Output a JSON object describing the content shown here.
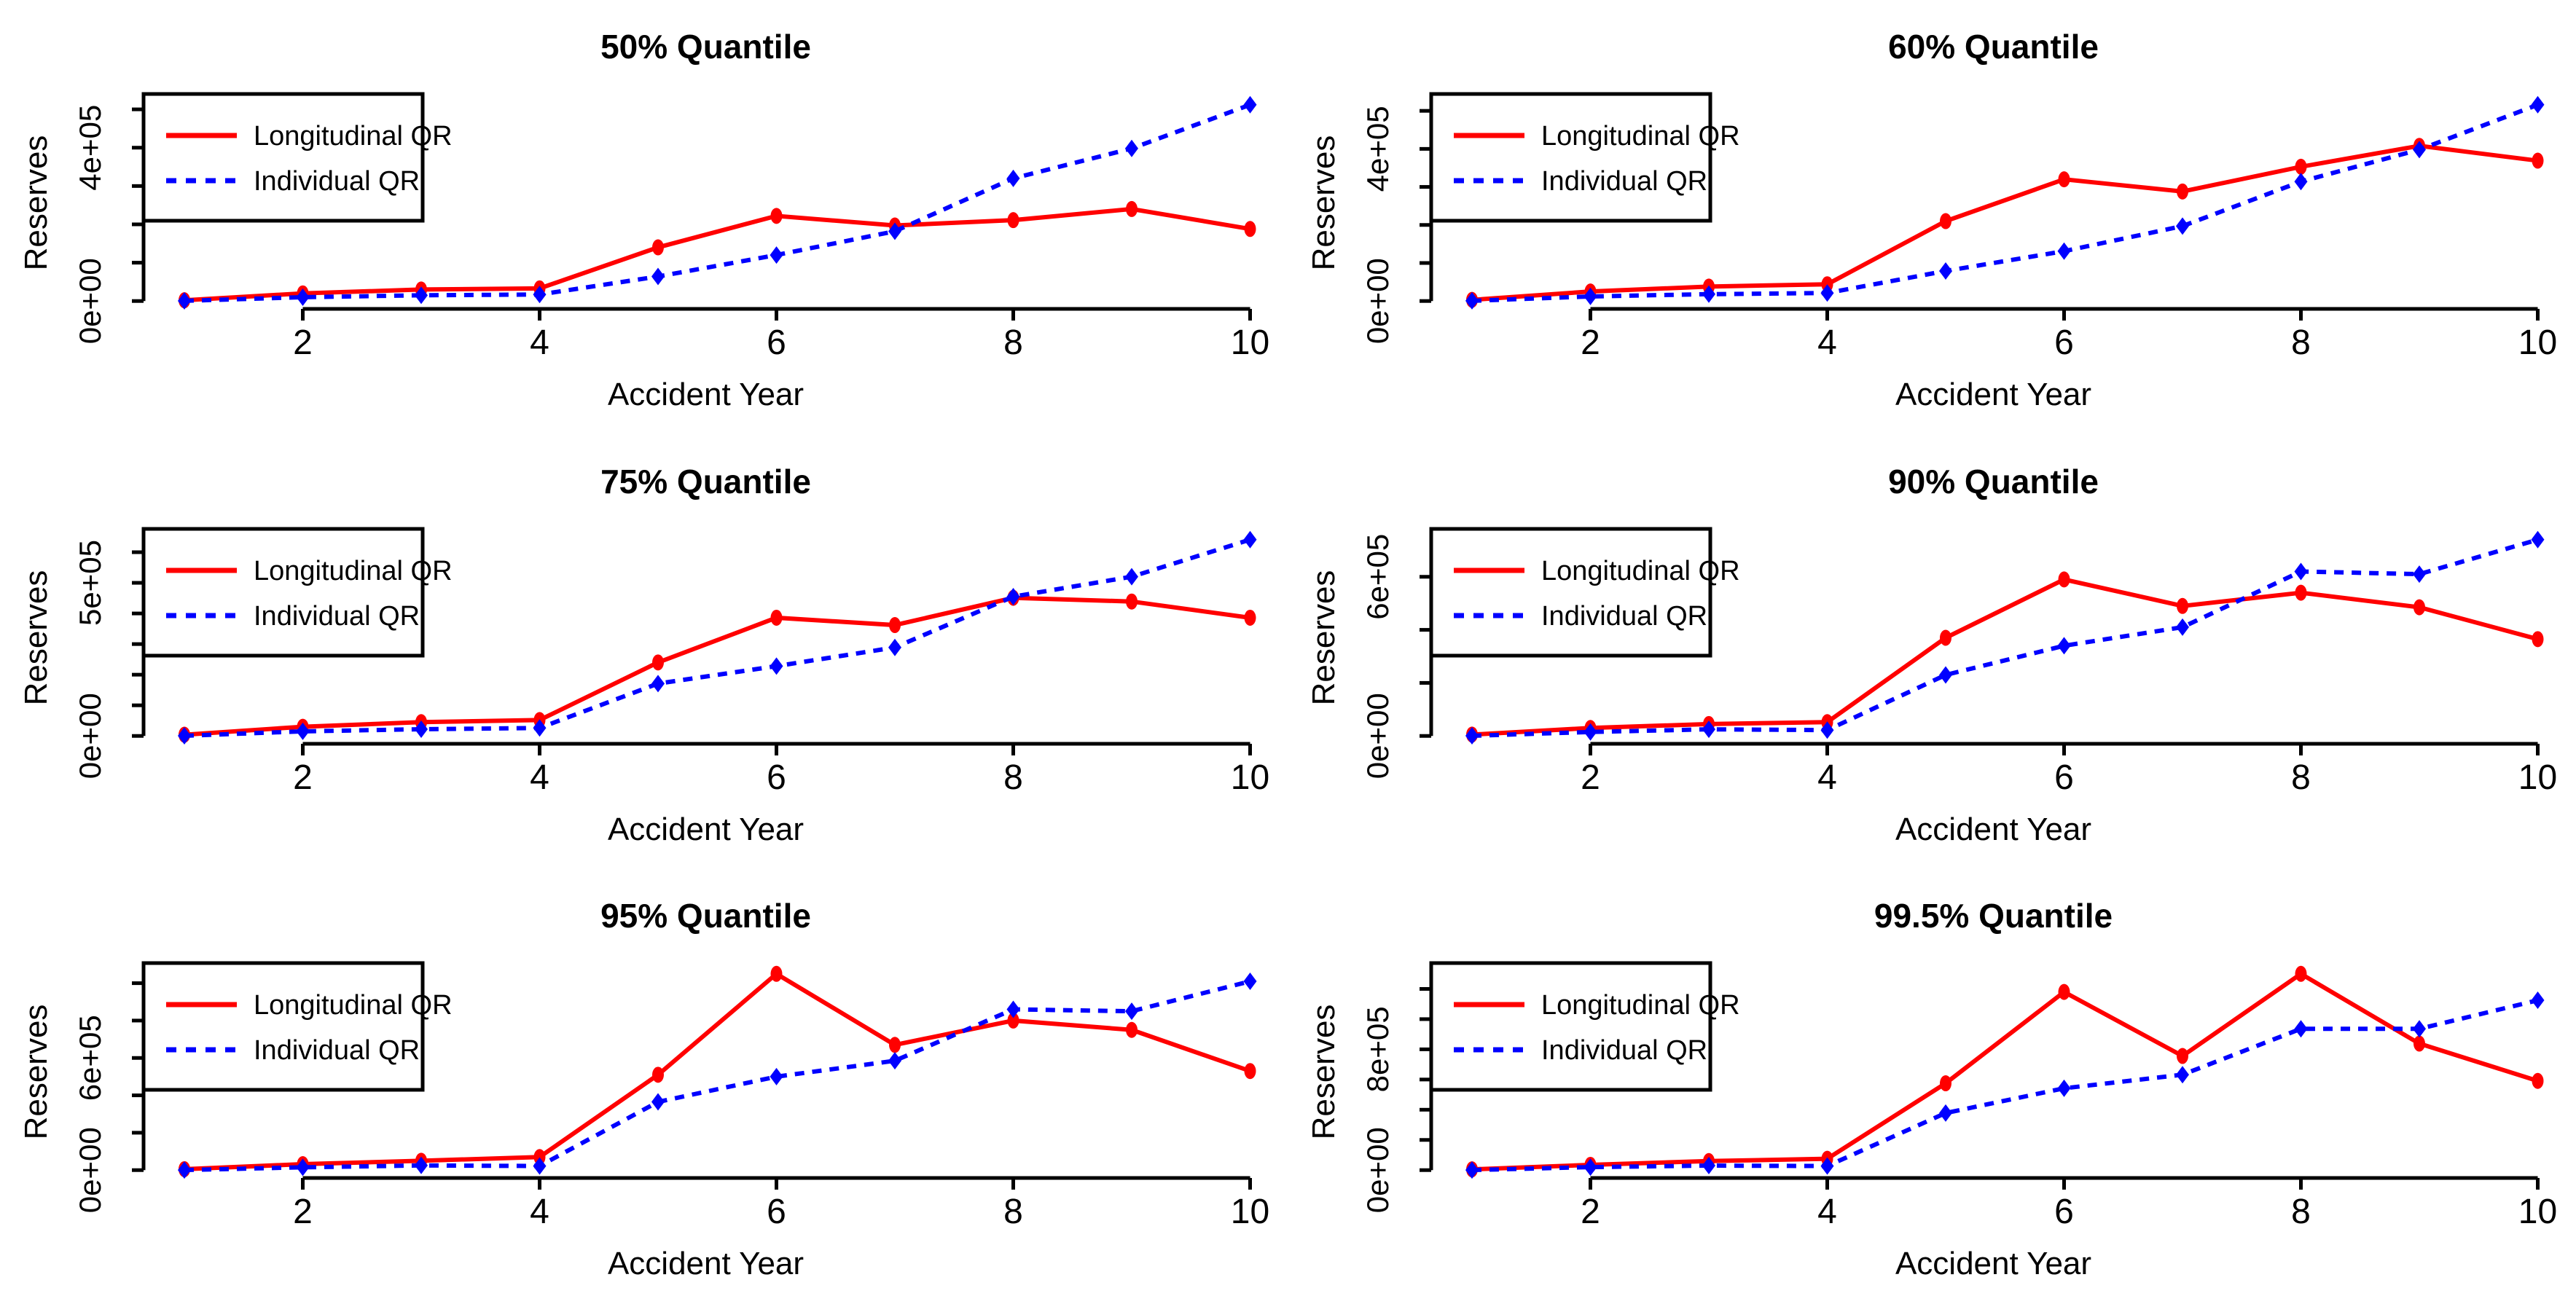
{
  "figure": {
    "xlabel": "Accident Year",
    "ylabel": "Reserves",
    "x_tick_labels": [
      "2",
      "4",
      "6",
      "8",
      "10"
    ],
    "x_ticks": [
      2,
      4,
      6,
      8,
      10
    ],
    "background": "#ffffff",
    "axis_color": "#000000"
  },
  "legend": {
    "items": [
      {
        "label": "Longitudinal QR",
        "color": "#ff0000",
        "style": "solid"
      },
      {
        "label": "Individual QR",
        "color": "#0000ff",
        "style": "dashed"
      }
    ]
  },
  "chart_data": [
    {
      "type": "line",
      "title": "50% Quantile",
      "xlabel": "Accident Year",
      "ylabel": "Reserves",
      "x": [
        1,
        2,
        3,
        4,
        5,
        6,
        7,
        8,
        9,
        10
      ],
      "xlim": [
        1,
        10
      ],
      "ylim": [
        -20500,
        532500
      ],
      "grid": false,
      "legend_position": "topleft",
      "y_ticks": [
        {
          "v": 0,
          "label": "0e+00"
        },
        {
          "v": 100000,
          "label": ""
        },
        {
          "v": 200000,
          "label": ""
        },
        {
          "v": 300000,
          "label": ""
        },
        {
          "v": 400000,
          "label": "4e+05"
        },
        {
          "v": 500000,
          "label": ""
        }
      ],
      "series": [
        {
          "name": "Longitudinal QR",
          "color": "#ff0000",
          "style": "solid",
          "marker": "circle",
          "values": [
            2000,
            20000,
            30000,
            33000,
            140000,
            222000,
            197000,
            211000,
            240000,
            188000
          ]
        },
        {
          "name": "Individual QR",
          "color": "#0000ff",
          "style": "dashed",
          "marker": "diamond",
          "values": [
            500,
            10000,
            15000,
            17000,
            64000,
            120000,
            182000,
            320000,
            398000,
            512000
          ]
        }
      ]
    },
    {
      "type": "line",
      "title": "60% Quantile",
      "xlabel": "Accident Year",
      "ylabel": "Reserves",
      "x": [
        1,
        2,
        3,
        4,
        5,
        6,
        7,
        8,
        9,
        10
      ],
      "xlim": [
        1,
        10
      ],
      "ylim": [
        -20700,
        536700
      ],
      "grid": false,
      "legend_position": "topleft",
      "y_ticks": [
        {
          "v": 0,
          "label": "0e+00"
        },
        {
          "v": 100000,
          "label": ""
        },
        {
          "v": 200000,
          "label": ""
        },
        {
          "v": 300000,
          "label": ""
        },
        {
          "v": 400000,
          "label": "4e+05"
        },
        {
          "v": 500000,
          "label": ""
        }
      ],
      "series": [
        {
          "name": "Longitudinal QR",
          "color": "#ff0000",
          "style": "solid",
          "marker": "circle",
          "values": [
            3000,
            25000,
            38000,
            44000,
            210000,
            320000,
            288000,
            353000,
            408000,
            369000
          ]
        },
        {
          "name": "Individual QR",
          "color": "#0000ff",
          "style": "dashed",
          "marker": "diamond",
          "values": [
            500,
            12000,
            18000,
            21000,
            79000,
            131000,
            197000,
            314000,
            398000,
            516000
          ]
        }
      ]
    },
    {
      "type": "line",
      "title": "75% Quantile",
      "xlabel": "Accident Year",
      "ylabel": "Reserves",
      "x": [
        1,
        2,
        3,
        4,
        5,
        6,
        7,
        8,
        9,
        10
      ],
      "xlim": [
        1,
        10
      ],
      "ylim": [
        -25650,
        666650
      ],
      "grid": false,
      "legend_position": "topleft",
      "y_ticks": [
        {
          "v": 0,
          "label": "0e+00"
        },
        {
          "v": 100000,
          "label": ""
        },
        {
          "v": 200000,
          "label": ""
        },
        {
          "v": 300000,
          "label": ""
        },
        {
          "v": 400000,
          "label": ""
        },
        {
          "v": 500000,
          "label": "5e+05"
        },
        {
          "v": 600000,
          "label": ""
        }
      ],
      "series": [
        {
          "name": "Longitudinal QR",
          "color": "#ff0000",
          "style": "solid",
          "marker": "circle",
          "values": [
            4000,
            30000,
            45000,
            52000,
            240000,
            386000,
            362000,
            451000,
            439000,
            386000
          ]
        },
        {
          "name": "Individual QR",
          "color": "#0000ff",
          "style": "dashed",
          "marker": "diamond",
          "values": [
            500,
            15000,
            22000,
            26000,
            171000,
            228000,
            289000,
            455000,
            520000,
            641000
          ]
        }
      ]
    },
    {
      "type": "line",
      "title": "90% Quantile",
      "xlabel": "Accident Year",
      "ylabel": "Reserves",
      "x": [
        1,
        2,
        3,
        4,
        5,
        6,
        7,
        8,
        9,
        10
      ],
      "xlim": [
        1,
        10
      ],
      "ylim": [
        -29600,
        769600
      ],
      "grid": false,
      "legend_position": "topleft",
      "y_ticks": [
        {
          "v": 0,
          "label": "0e+00"
        },
        {
          "v": 200000,
          "label": ""
        },
        {
          "v": 400000,
          "label": ""
        },
        {
          "v": 600000,
          "label": "6e+05"
        }
      ],
      "series": [
        {
          "name": "Longitudinal QR",
          "color": "#ff0000",
          "style": "solid",
          "marker": "circle",
          "values": [
            5000,
            30000,
            45000,
            52000,
            370000,
            590000,
            490000,
            540000,
            485000,
            365000
          ]
        },
        {
          "name": "Individual QR",
          "color": "#0000ff",
          "style": "dashed",
          "marker": "diamond",
          "values": [
            500,
            15000,
            25000,
            22000,
            230000,
            340000,
            410000,
            620000,
            610000,
            740000
          ]
        }
      ]
    },
    {
      "type": "line",
      "title": "95% Quantile",
      "xlabel": "Accident Year",
      "ylabel": "Reserves",
      "x": [
        1,
        2,
        3,
        4,
        5,
        6,
        7,
        8,
        9,
        10
      ],
      "xlim": [
        1,
        10
      ],
      "ylim": [
        -42000,
        1092000
      ],
      "grid": false,
      "legend_position": "topleft",
      "y_ticks": [
        {
          "v": 0,
          "label": "0e+00"
        },
        {
          "v": 200000,
          "label": ""
        },
        {
          "v": 400000,
          "label": ""
        },
        {
          "v": 600000,
          "label": "6e+05"
        },
        {
          "v": 800000,
          "label": ""
        },
        {
          "v": 1000000,
          "label": ""
        }
      ],
      "series": [
        {
          "name": "Longitudinal QR",
          "color": "#ff0000",
          "style": "solid",
          "marker": "circle",
          "values": [
            5000,
            32000,
            50000,
            70000,
            510000,
            1050000,
            670000,
            800000,
            750000,
            530000
          ]
        },
        {
          "name": "Individual QR",
          "color": "#0000ff",
          "style": "dashed",
          "marker": "diamond",
          "values": [
            500,
            15000,
            25000,
            22000,
            365000,
            500000,
            585000,
            860000,
            850000,
            1010000
          ]
        }
      ]
    },
    {
      "type": "line",
      "title": "99.5% Quantile",
      "xlabel": "Accident Year",
      "ylabel": "Reserves",
      "x": [
        1,
        2,
        3,
        4,
        5,
        6,
        7,
        8,
        9,
        10
      ],
      "xlim": [
        1,
        10
      ],
      "ylim": [
        -52000,
        1352000
      ],
      "grid": false,
      "legend_position": "topleft",
      "y_ticks": [
        {
          "v": 0,
          "label": "0e+00"
        },
        {
          "v": 200000,
          "label": ""
        },
        {
          "v": 400000,
          "label": ""
        },
        {
          "v": 600000,
          "label": ""
        },
        {
          "v": 800000,
          "label": "8e+05"
        },
        {
          "v": 1000000,
          "label": ""
        },
        {
          "v": 1200000,
          "label": ""
        }
      ],
      "series": [
        {
          "name": "Longitudinal QR",
          "color": "#ff0000",
          "style": "solid",
          "marker": "circle",
          "values": [
            5000,
            35000,
            60000,
            75000,
            575000,
            1180000,
            756000,
            1300000,
            838000,
            591000
          ]
        },
        {
          "name": "Individual QR",
          "color": "#0000ff",
          "style": "dashed",
          "marker": "diamond",
          "values": [
            500,
            20000,
            30000,
            27000,
            378000,
            542000,
            632000,
            936000,
            936000,
            1125000
          ]
        }
      ]
    }
  ]
}
